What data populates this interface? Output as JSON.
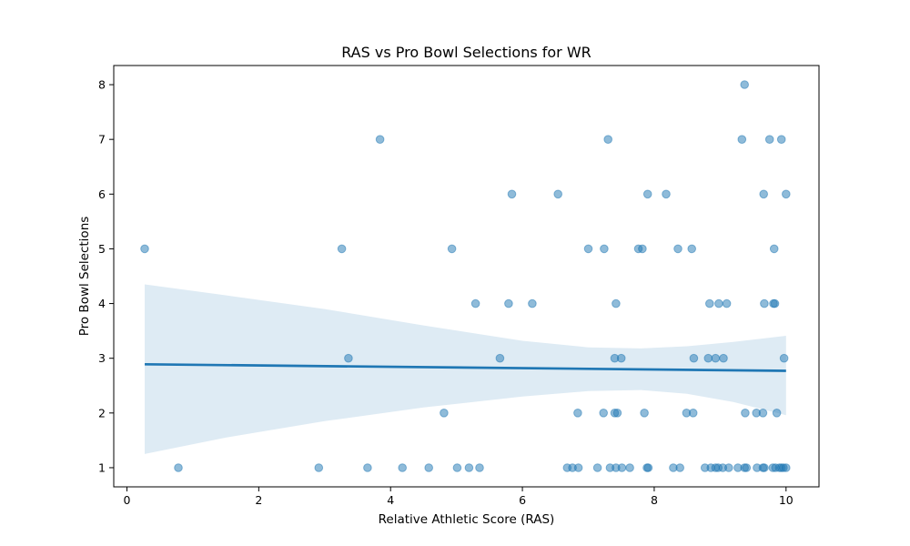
{
  "chart_data": {
    "type": "scatter",
    "title": "RAS vs Pro Bowl Selections for WR",
    "xlabel": "Relative Athletic Score (RAS)",
    "ylabel": "Pro Bowl Selections",
    "xlim": [
      -0.2,
      10.5
    ],
    "ylim": [
      0.65,
      8.35
    ],
    "x_ticks": [
      0,
      2,
      4,
      6,
      8,
      10
    ],
    "y_ticks": [
      1,
      2,
      3,
      4,
      5,
      6,
      7,
      8
    ],
    "grid": false,
    "legend": "none",
    "point_color": "#1f77b4",
    "point_alpha": 0.5,
    "band_color": "#1f77b4",
    "band_alpha": 0.15,
    "points": [
      {
        "x": 0.27,
        "y": 5
      },
      {
        "x": 3.26,
        "y": 5
      },
      {
        "x": 4.93,
        "y": 5
      },
      {
        "x": 7.0,
        "y": 5
      },
      {
        "x": 7.24,
        "y": 5
      },
      {
        "x": 7.76,
        "y": 5
      },
      {
        "x": 7.82,
        "y": 5
      },
      {
        "x": 8.36,
        "y": 5
      },
      {
        "x": 8.57,
        "y": 5
      },
      {
        "x": 9.82,
        "y": 5
      },
      {
        "x": 3.84,
        "y": 7
      },
      {
        "x": 7.3,
        "y": 7
      },
      {
        "x": 9.33,
        "y": 7
      },
      {
        "x": 9.75,
        "y": 7
      },
      {
        "x": 9.93,
        "y": 7
      },
      {
        "x": 9.37,
        "y": 8
      },
      {
        "x": 5.84,
        "y": 6
      },
      {
        "x": 6.54,
        "y": 6
      },
      {
        "x": 7.9,
        "y": 6
      },
      {
        "x": 8.18,
        "y": 6
      },
      {
        "x": 9.66,
        "y": 6
      },
      {
        "x": 10.0,
        "y": 6
      },
      {
        "x": 5.29,
        "y": 4
      },
      {
        "x": 5.79,
        "y": 4
      },
      {
        "x": 6.15,
        "y": 4
      },
      {
        "x": 7.42,
        "y": 4
      },
      {
        "x": 8.84,
        "y": 4
      },
      {
        "x": 8.98,
        "y": 4
      },
      {
        "x": 9.1,
        "y": 4
      },
      {
        "x": 9.67,
        "y": 4
      },
      {
        "x": 9.81,
        "y": 4
      },
      {
        "x": 9.83,
        "y": 4
      },
      {
        "x": 3.36,
        "y": 3
      },
      {
        "x": 5.66,
        "y": 3
      },
      {
        "x": 7.4,
        "y": 3
      },
      {
        "x": 7.5,
        "y": 3
      },
      {
        "x": 8.6,
        "y": 3
      },
      {
        "x": 8.82,
        "y": 3
      },
      {
        "x": 8.93,
        "y": 3
      },
      {
        "x": 9.05,
        "y": 3
      },
      {
        "x": 9.97,
        "y": 3
      },
      {
        "x": 4.81,
        "y": 2
      },
      {
        "x": 6.84,
        "y": 2
      },
      {
        "x": 7.23,
        "y": 2
      },
      {
        "x": 7.4,
        "y": 2
      },
      {
        "x": 7.44,
        "y": 2
      },
      {
        "x": 7.85,
        "y": 2
      },
      {
        "x": 8.49,
        "y": 2
      },
      {
        "x": 8.59,
        "y": 2
      },
      {
        "x": 9.38,
        "y": 2
      },
      {
        "x": 9.55,
        "y": 2
      },
      {
        "x": 9.65,
        "y": 2
      },
      {
        "x": 9.86,
        "y": 2
      },
      {
        "x": 0.78,
        "y": 1
      },
      {
        "x": 2.91,
        "y": 1
      },
      {
        "x": 3.65,
        "y": 1
      },
      {
        "x": 4.18,
        "y": 1
      },
      {
        "x": 4.58,
        "y": 1
      },
      {
        "x": 5.01,
        "y": 1
      },
      {
        "x": 5.19,
        "y": 1
      },
      {
        "x": 5.35,
        "y": 1
      },
      {
        "x": 6.68,
        "y": 1
      },
      {
        "x": 6.76,
        "y": 1
      },
      {
        "x": 6.85,
        "y": 1
      },
      {
        "x": 7.14,
        "y": 1
      },
      {
        "x": 7.33,
        "y": 1
      },
      {
        "x": 7.42,
        "y": 1
      },
      {
        "x": 7.51,
        "y": 1
      },
      {
        "x": 7.63,
        "y": 1
      },
      {
        "x": 7.89,
        "y": 1
      },
      {
        "x": 7.91,
        "y": 1
      },
      {
        "x": 8.29,
        "y": 1
      },
      {
        "x": 8.39,
        "y": 1
      },
      {
        "x": 8.77,
        "y": 1
      },
      {
        "x": 8.86,
        "y": 1
      },
      {
        "x": 8.93,
        "y": 1
      },
      {
        "x": 8.97,
        "y": 1
      },
      {
        "x": 9.04,
        "y": 1
      },
      {
        "x": 9.13,
        "y": 1
      },
      {
        "x": 9.27,
        "y": 1
      },
      {
        "x": 9.37,
        "y": 1
      },
      {
        "x": 9.4,
        "y": 1
      },
      {
        "x": 9.56,
        "y": 1
      },
      {
        "x": 9.65,
        "y": 1
      },
      {
        "x": 9.67,
        "y": 1
      },
      {
        "x": 9.8,
        "y": 1
      },
      {
        "x": 9.84,
        "y": 1
      },
      {
        "x": 9.9,
        "y": 1
      },
      {
        "x": 9.93,
        "y": 1
      },
      {
        "x": 9.96,
        "y": 1
      },
      {
        "x": 10.0,
        "y": 1
      }
    ],
    "regression": {
      "x": [
        0.27,
        10.0
      ],
      "y": [
        2.89,
        2.77
      ]
    },
    "confidence_band": {
      "x": [
        0.27,
        1.5,
        3.0,
        4.5,
        6.0,
        7.0,
        7.8,
        8.5,
        9.2,
        10.0
      ],
      "upper": [
        4.35,
        4.15,
        3.9,
        3.6,
        3.32,
        3.2,
        3.18,
        3.22,
        3.3,
        3.41
      ],
      "lower": [
        1.25,
        1.55,
        1.85,
        2.1,
        2.3,
        2.4,
        2.42,
        2.35,
        2.2,
        1.96
      ]
    }
  }
}
